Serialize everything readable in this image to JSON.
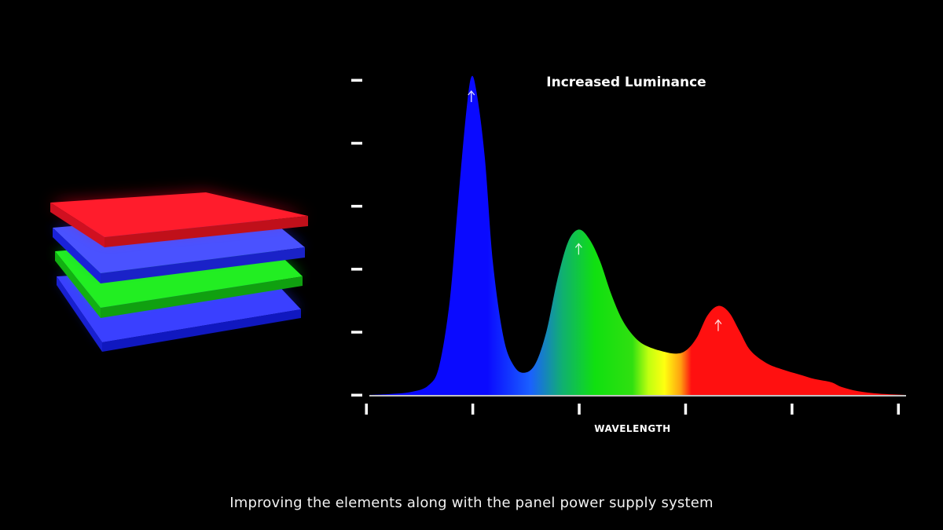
{
  "chart_data": {
    "type": "area",
    "title": "Increased Luminance",
    "xlabel": "WAVELENGTH",
    "ylabel": "",
    "x_ticks": 5,
    "y_ticks": 6,
    "xlim": [
      0,
      100
    ],
    "ylim": [
      0,
      100
    ],
    "grid": false,
    "peaks": [
      {
        "name": "blue",
        "x": 19,
        "y": 100,
        "color": "#1010ff"
      },
      {
        "name": "green",
        "x": 39,
        "y": 52,
        "color": "#20e010"
      },
      {
        "name": "red",
        "x": 65,
        "y": 28,
        "color": "#ff1010"
      }
    ],
    "points": [
      [
        0,
        0
      ],
      [
        4,
        0.3
      ],
      [
        8,
        1
      ],
      [
        11,
        3
      ],
      [
        13,
        9
      ],
      [
        15,
        30
      ],
      [
        16.5,
        60
      ],
      [
        18,
        88
      ],
      [
        19,
        100
      ],
      [
        20,
        95
      ],
      [
        21.5,
        75
      ],
      [
        23,
        42
      ],
      [
        25,
        18
      ],
      [
        27,
        9
      ],
      [
        29,
        7
      ],
      [
        31,
        10
      ],
      [
        33,
        20
      ],
      [
        35,
        36
      ],
      [
        37,
        48
      ],
      [
        39,
        52
      ],
      [
        41,
        49
      ],
      [
        43,
        42
      ],
      [
        45,
        32
      ],
      [
        47,
        24
      ],
      [
        49,
        19
      ],
      [
        51,
        16
      ],
      [
        54,
        14
      ],
      [
        57,
        13
      ],
      [
        59,
        14
      ],
      [
        61,
        18
      ],
      [
        63,
        25
      ],
      [
        65,
        28
      ],
      [
        67,
        26
      ],
      [
        69,
        20
      ],
      [
        71,
        14
      ],
      [
        74,
        10
      ],
      [
        77,
        8
      ],
      [
        80,
        6.5
      ],
      [
        83,
        5
      ],
      [
        86,
        4
      ],
      [
        88,
        2.5
      ],
      [
        91,
        1.2
      ],
      [
        95,
        0.4
      ],
      [
        100,
        0
      ]
    ]
  },
  "caption": "Improving the elements along with the panel power supply system",
  "colors": {
    "background": "#000000",
    "layer_top": "#ff1020",
    "layer_blue": "#2030ff",
    "layer_green": "#10e020"
  }
}
